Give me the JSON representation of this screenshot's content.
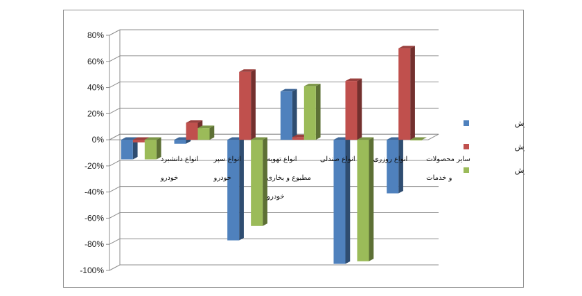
{
  "chart_data": {
    "type": "bar",
    "style": "3d-clustered-column",
    "categories": [
      [
        "انواع دانشبرد",
        "خودرو"
      ],
      [
        "انواع سپر",
        "خودرو"
      ],
      [
        "انواع تهویه",
        "مطبوع و بخاری",
        "خودرو"
      ],
      [
        "انواع صندلی"
      ],
      [
        "انواع روزری"
      ],
      [
        "سایر محصولات",
        "و خدمات"
      ]
    ],
    "series": [
      {
        "name": "مقدار فروش",
        "color": "#4f81bd",
        "values": [
          -15,
          -3,
          -77,
          37,
          -95,
          -41
        ]
      },
      {
        "name": "نرخ فروش",
        "color": "#c0504d",
        "values": [
          -2,
          13,
          52,
          2,
          45,
          70
        ]
      },
      {
        "name": "مبلغ فروش",
        "color": "#9bbb59",
        "values": [
          -15,
          9,
          -66,
          41,
          -93,
          0
        ]
      }
    ],
    "ylim": [
      -100,
      80
    ],
    "yticks": [
      80,
      60,
      40,
      20,
      0,
      -20,
      -40,
      -60,
      -80,
      -100
    ],
    "ytick_labels": [
      "80%",
      "60%",
      "40%",
      "20%",
      "0%",
      "-20%",
      "-40%",
      "-60%",
      "-80%",
      "-100%"
    ],
    "grid": true,
    "legend_position": "right",
    "title": "",
    "xlabel": "",
    "ylabel": ""
  }
}
